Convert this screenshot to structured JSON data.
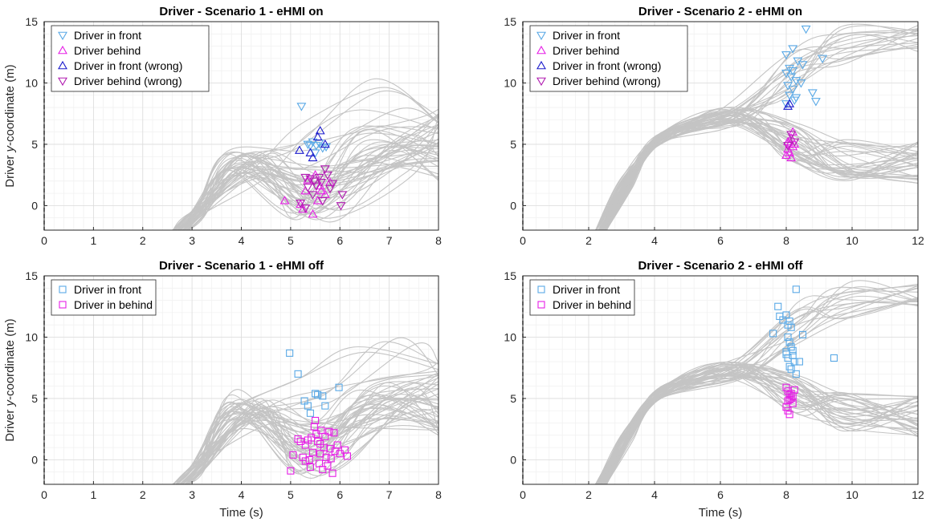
{
  "chart_data": [
    {
      "type": "scatter",
      "title": "Driver - Scenario 1 - eHMI on",
      "xlabel": "",
      "ylabel": "Driver y-coordinate (m)",
      "ylabel_parts": [
        "Driver ",
        "y",
        "-coordinate (m)"
      ],
      "xlim": [
        0,
        8
      ],
      "ylim": [
        -2,
        15
      ],
      "xticks": [
        0,
        1,
        2,
        3,
        4,
        5,
        6,
        7,
        8
      ],
      "yticks": [
        0,
        5,
        10,
        15
      ],
      "grid": true,
      "legend_position": "top-left",
      "vline_x": 0,
      "series": [
        {
          "name": "Driver in front",
          "marker": "tri-down",
          "color": "#5aa9e6",
          "points": [
            [
              5.22,
              8.1
            ],
            [
              5.35,
              5.0
            ],
            [
              5.45,
              5.2
            ],
            [
              5.52,
              4.9
            ],
            [
              5.58,
              5.1
            ],
            [
              5.65,
              4.7
            ],
            [
              5.72,
              4.8
            ],
            [
              5.5,
              4.3
            ],
            [
              5.4,
              4.9
            ]
          ]
        },
        {
          "name": "Driver behind",
          "marker": "tri-up",
          "color": "#e61ee6",
          "points": [
            [
              4.88,
              0.4
            ],
            [
              5.2,
              0.1
            ],
            [
              5.3,
              1.2
            ],
            [
              5.45,
              -0.7
            ],
            [
              5.55,
              0.4
            ],
            [
              5.62,
              1.2
            ],
            [
              5.7,
              0.9
            ],
            [
              5.8,
              1.9
            ],
            [
              5.5,
              2.5
            ],
            [
              5.35,
              2.1
            ],
            [
              5.6,
              1.6
            ],
            [
              5.25,
              -0.3
            ]
          ]
        },
        {
          "name": "Driver in front (wrong)",
          "marker": "tri-up",
          "color": "#1a1acc",
          "points": [
            [
              5.18,
              4.5
            ],
            [
              5.45,
              3.9
            ],
            [
              5.55,
              5.6
            ],
            [
              5.6,
              6.1
            ],
            [
              5.7,
              5.0
            ],
            [
              5.4,
              4.3
            ]
          ]
        },
        {
          "name": "Driver behind (wrong)",
          "marker": "tri-down",
          "color": "#b01ab0",
          "points": [
            [
              5.2,
              0.2
            ],
            [
              5.3,
              -0.2
            ],
            [
              5.35,
              1.5
            ],
            [
              5.4,
              2.2
            ],
            [
              5.48,
              2.0
            ],
            [
              5.52,
              1.6
            ],
            [
              5.58,
              2.3
            ],
            [
              5.62,
              1.9
            ],
            [
              5.7,
              3.0
            ],
            [
              5.75,
              2.5
            ],
            [
              5.8,
              1.4
            ],
            [
              5.85,
              1.8
            ],
            [
              6.05,
              0.9
            ],
            [
              6.02,
              0.0
            ],
            [
              5.65,
              0.4
            ],
            [
              5.45,
              0.9
            ],
            [
              5.3,
              2.3
            ]
          ]
        }
      ]
    },
    {
      "type": "scatter",
      "title": "Driver - Scenario 2 - eHMI on",
      "xlabel": "",
      "ylabel": "",
      "xlim": [
        0,
        12
      ],
      "ylim": [
        -2,
        15
      ],
      "xticks": [
        0,
        2,
        4,
        6,
        8,
        10,
        12
      ],
      "yticks": [
        0,
        5,
        10,
        15
      ],
      "grid": true,
      "legend_position": "top-left",
      "vline_x": 0,
      "series": [
        {
          "name": "Driver in front",
          "marker": "tri-down",
          "color": "#5aa9e6",
          "points": [
            [
              8.0,
              12.3
            ],
            [
              8.2,
              12.8
            ],
            [
              8.6,
              14.4
            ],
            [
              8.35,
              11.8
            ],
            [
              8.5,
              11.5
            ],
            [
              8.1,
              11.2
            ],
            [
              8.0,
              10.8
            ],
            [
              8.15,
              10.5
            ],
            [
              8.3,
              10.2
            ],
            [
              8.45,
              10.0
            ],
            [
              8.05,
              9.8
            ],
            [
              8.2,
              9.5
            ],
            [
              8.1,
              9.0
            ],
            [
              8.3,
              8.8
            ],
            [
              8.8,
              9.2
            ],
            [
              8.9,
              8.5
            ],
            [
              9.1,
              12.0
            ],
            [
              8.25,
              8.6
            ],
            [
              8.0,
              8.3
            ],
            [
              8.2,
              11.0
            ]
          ]
        },
        {
          "name": "Driver behind",
          "marker": "tri-up",
          "color": "#e61ee6",
          "points": [
            [
              8.0,
              4.1
            ],
            [
              8.05,
              4.6
            ],
            [
              8.1,
              5.0
            ],
            [
              8.15,
              5.5
            ],
            [
              8.2,
              6.0
            ],
            [
              8.1,
              4.3
            ],
            [
              8.2,
              4.8
            ],
            [
              8.05,
              5.2
            ],
            [
              8.15,
              3.9
            ],
            [
              8.25,
              5.0
            ]
          ]
        },
        {
          "name": "Driver in front (wrong)",
          "marker": "tri-up",
          "color": "#1a1acc",
          "points": [
            [
              8.05,
              8.1
            ],
            [
              8.1,
              8.3
            ]
          ]
        },
        {
          "name": "Driver behind (wrong)",
          "marker": "tri-down",
          "color": "#b01ab0",
          "points": [
            [
              8.15,
              5.8
            ],
            [
              8.25,
              5.2
            ],
            [
              8.05,
              4.9
            ]
          ]
        }
      ]
    },
    {
      "type": "scatter",
      "title": "Driver - Scenario 1 - eHMI off",
      "xlabel": "Time (s)",
      "ylabel": "Driver y-coordinate (m)",
      "ylabel_parts": [
        "Driver ",
        "y",
        "-coordinate (m)"
      ],
      "xlim": [
        0,
        8
      ],
      "ylim": [
        -2,
        15
      ],
      "xticks": [
        0,
        1,
        2,
        3,
        4,
        5,
        6,
        7,
        8
      ],
      "yticks": [
        0,
        5,
        10,
        15
      ],
      "grid": true,
      "legend_position": "top-left",
      "vline_x": 0,
      "series": [
        {
          "name": "Driver in front",
          "marker": "square",
          "color": "#5aa9e6",
          "points": [
            [
              4.98,
              8.7
            ],
            [
              5.15,
              7.0
            ],
            [
              5.28,
              4.8
            ],
            [
              5.35,
              4.4
            ],
            [
              5.4,
              3.8
            ],
            [
              5.5,
              5.4
            ],
            [
              5.55,
              5.3
            ],
            [
              5.65,
              5.2
            ],
            [
              5.7,
              4.4
            ],
            [
              5.98,
              5.9
            ]
          ]
        },
        {
          "name": "Driver in behind",
          "marker": "square",
          "color": "#e61ee6",
          "points": [
            [
              5.0,
              -0.9
            ],
            [
              5.05,
              0.4
            ],
            [
              5.15,
              1.7
            ],
            [
              5.2,
              1.5
            ],
            [
              5.25,
              0.2
            ],
            [
              5.3,
              -0.1
            ],
            [
              5.3,
              1.2
            ],
            [
              5.35,
              1.6
            ],
            [
              5.38,
              0.0
            ],
            [
              5.42,
              1.8
            ],
            [
              5.45,
              0.6
            ],
            [
              5.48,
              2.7
            ],
            [
              5.5,
              3.2
            ],
            [
              5.52,
              2.1
            ],
            [
              5.55,
              1.5
            ],
            [
              5.58,
              -0.3
            ],
            [
              5.6,
              0.5
            ],
            [
              5.62,
              2.4
            ],
            [
              5.65,
              -0.8
            ],
            [
              5.68,
              1.0
            ],
            [
              5.7,
              1.9
            ],
            [
              5.75,
              -0.5
            ],
            [
              5.78,
              2.3
            ],
            [
              5.8,
              0.9
            ],
            [
              5.82,
              0.1
            ],
            [
              5.85,
              -1.1
            ],
            [
              5.88,
              2.2
            ],
            [
              5.9,
              0.7
            ],
            [
              6.0,
              0.5
            ],
            [
              6.1,
              0.8
            ],
            [
              6.15,
              0.3
            ],
            [
              5.4,
              -0.6
            ],
            [
              5.72,
              0.2
            ],
            [
              5.95,
              1.2
            ],
            [
              5.6,
              1.3
            ]
          ]
        }
      ]
    },
    {
      "type": "scatter",
      "title": "Driver - Scenario 2 - eHMI off",
      "xlabel": "Time (s)",
      "ylabel": "",
      "xlim": [
        0,
        12
      ],
      "ylim": [
        -2,
        15
      ],
      "xticks": [
        0,
        2,
        4,
        6,
        8,
        10,
        12
      ],
      "yticks": [
        0,
        5,
        10,
        15
      ],
      "grid": true,
      "legend_position": "top-left",
      "vline_x": 0,
      "series": [
        {
          "name": "Driver in front",
          "marker": "square",
          "color": "#5aa9e6",
          "points": [
            [
              7.6,
              10.3
            ],
            [
              7.75,
              12.5
            ],
            [
              7.8,
              11.7
            ],
            [
              7.9,
              11.4
            ],
            [
              8.0,
              11.8
            ],
            [
              8.05,
              11.0
            ],
            [
              8.1,
              11.3
            ],
            [
              8.15,
              10.8
            ],
            [
              8.3,
              13.9
            ],
            [
              8.5,
              10.2
            ],
            [
              8.05,
              10.0
            ],
            [
              8.1,
              9.6
            ],
            [
              8.15,
              9.2
            ],
            [
              8.0,
              8.8
            ],
            [
              8.2,
              8.5
            ],
            [
              8.25,
              8.0
            ],
            [
              8.1,
              7.6
            ],
            [
              8.15,
              7.4
            ],
            [
              8.3,
              7.0
            ],
            [
              8.4,
              8.0
            ],
            [
              8.05,
              8.3
            ],
            [
              8.2,
              8.9
            ],
            [
              9.45,
              8.3
            ],
            [
              8.0,
              8.6
            ]
          ]
        },
        {
          "name": "Driver in behind",
          "marker": "square",
          "color": "#e61ee6",
          "points": [
            [
              8.0,
              5.9
            ],
            [
              8.05,
              5.6
            ],
            [
              8.1,
              5.3
            ],
            [
              8.15,
              5.0
            ],
            [
              8.2,
              4.6
            ],
            [
              8.0,
              4.3
            ],
            [
              8.05,
              4.0
            ],
            [
              8.1,
              3.7
            ],
            [
              8.15,
              5.4
            ],
            [
              8.2,
              5.2
            ],
            [
              8.25,
              5.7
            ],
            [
              8.05,
              4.8
            ],
            [
              8.1,
              4.9
            ]
          ]
        }
      ]
    }
  ]
}
